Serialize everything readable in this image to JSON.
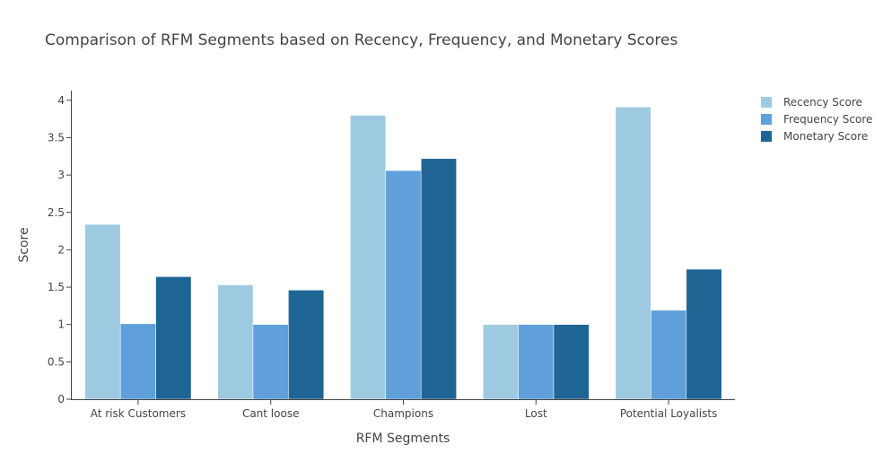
{
  "chart_data": {
    "type": "bar",
    "title": "Comparison of RFM Segments based on Recency, Frequency, and Monetary Scores",
    "xlabel": "RFM Segments",
    "ylabel": "Score",
    "ylim": [
      0,
      4.13
    ],
    "yticks": [
      0,
      0.5,
      1,
      1.5,
      2,
      2.5,
      3,
      3.5,
      4
    ],
    "ytick_labels": [
      "0",
      "0.5",
      "1",
      "1.5",
      "2",
      "2.5",
      "3",
      "3.5",
      "4"
    ],
    "grid": false,
    "legend_position": "top-right",
    "categories": [
      "At risk Customers",
      "Cant loose",
      "Champions",
      "Lost",
      "Potential Loyalists"
    ],
    "series": [
      {
        "name": "Recency Score",
        "color": "#9ecae1",
        "values": [
          2.34,
          1.53,
          3.8,
          1.0,
          3.91
        ]
      },
      {
        "name": "Frequency Score",
        "color": "#5f9fda",
        "values": [
          1.01,
          1.0,
          3.06,
          1.0,
          1.19
        ]
      },
      {
        "name": "Monetary Score",
        "color": "#1f6594",
        "values": [
          1.64,
          1.46,
          3.22,
          1.0,
          1.74
        ]
      }
    ]
  }
}
